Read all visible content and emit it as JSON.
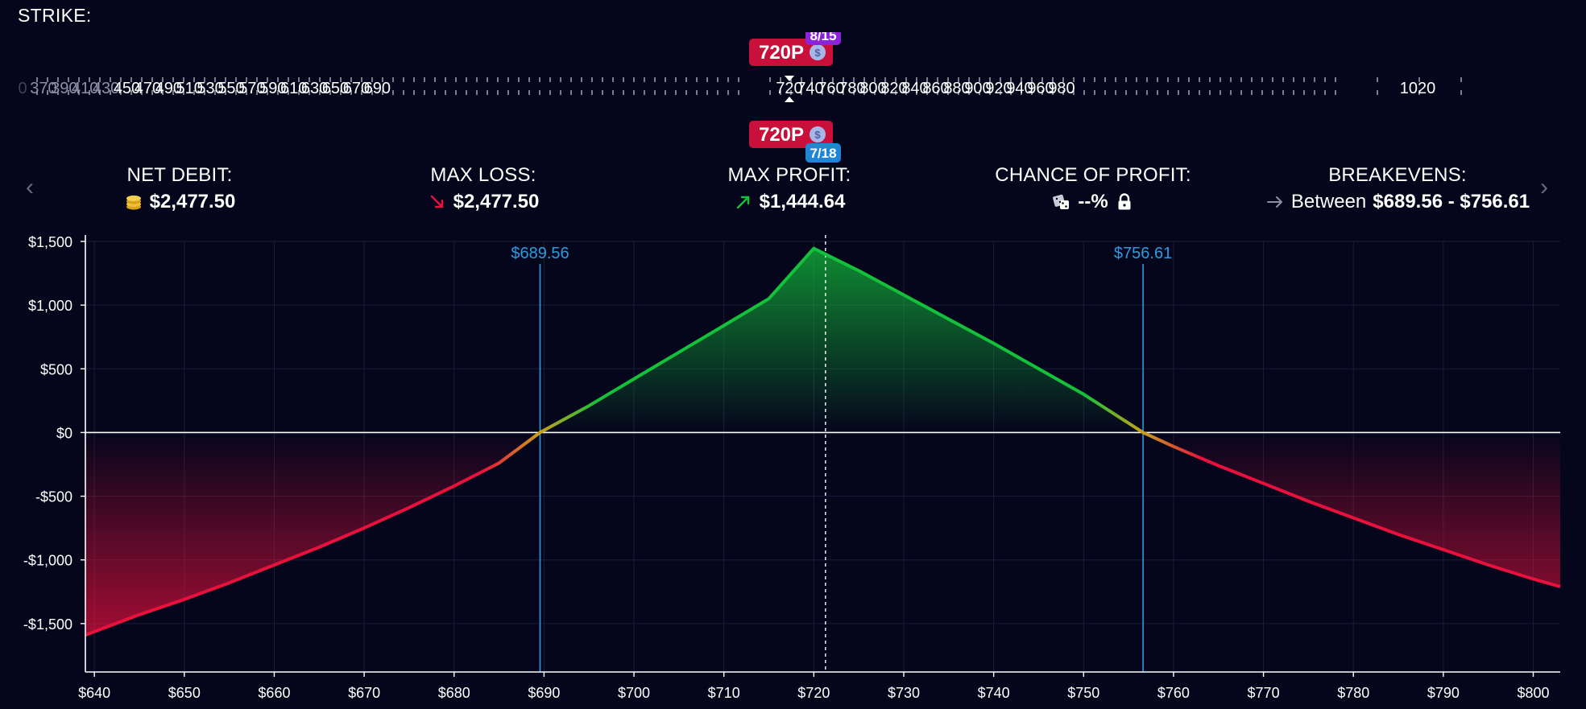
{
  "strike_panel": {
    "title": "STRIKE:",
    "tick_labels": [
      "0",
      "370",
      "390",
      "410",
      "430",
      "450",
      "470",
      "490",
      "510",
      "530",
      "550",
      "570",
      "590",
      "610",
      "630",
      "650",
      "670",
      "690",
      "720",
      "740",
      "760",
      "780",
      "800",
      "820",
      "840",
      "860",
      "880",
      "900",
      "920",
      "940",
      "960",
      "980",
      "1020"
    ],
    "selected_top": {
      "label": "720P",
      "date": "8/15",
      "date_color": "#8b24d8"
    },
    "selected_bottom": {
      "label": "720P",
      "date": "7/18",
      "date_color": "#1f86d6"
    },
    "badge_color": "#c8103a",
    "coin_glyph": "$"
  },
  "stats": {
    "net_debit": {
      "label": "NET DEBIT:",
      "value": "$2,477.50",
      "icon": "coins-icon"
    },
    "max_loss": {
      "label": "MAX LOSS:",
      "value": "$2,477.50",
      "icon": "arrow-down-right-icon"
    },
    "max_profit": {
      "label": "MAX PROFIT:",
      "value": "$1,444.64",
      "icon": "arrow-up-right-icon"
    },
    "chance_of_profit": {
      "label": "CHANCE OF PROFIT:",
      "value": "--%",
      "icon": "dice-icon",
      "lock_icon": "lock-icon"
    },
    "breakevens": {
      "label": "BREAKEVENS:",
      "prefix": "Between",
      "value": "$689.56 - $756.61",
      "icon": "arrow-right-icon"
    }
  },
  "nav": {
    "prev_glyph": "‹",
    "next_glyph": "›"
  },
  "chart_data": {
    "type": "line",
    "xlim": [
      639,
      803
    ],
    "ylim": [
      -1880,
      1500
    ],
    "x_ticks": [
      640,
      650,
      660,
      670,
      680,
      690,
      700,
      710,
      720,
      730,
      740,
      750,
      760,
      770,
      780,
      790,
      800
    ],
    "x_tick_labels": [
      "$640",
      "$650",
      "$660",
      "$670",
      "$680",
      "$690",
      "$700",
      "$710",
      "$720",
      "$730",
      "$740",
      "$750",
      "$760",
      "$770",
      "$780",
      "$790",
      "$800"
    ],
    "y_ticks": [
      1500,
      1000,
      500,
      0,
      -500,
      -1000,
      -1500
    ],
    "y_tick_labels": [
      "$1,500",
      "$1,000",
      "$500",
      "$0",
      "-$500",
      "-$1,000",
      "-$1,500"
    ],
    "series": [
      {
        "x": [
          639,
          645,
          650,
          655,
          660,
          665,
          670,
          675,
          680,
          685,
          689.56,
          695,
          700,
          705,
          710,
          715,
          720,
          725,
          730,
          735,
          740,
          745,
          750,
          756.61,
          760,
          765,
          770,
          775,
          780,
          785,
          790,
          795,
          800,
          803
        ],
        "y": [
          -1590,
          -1430,
          -1310,
          -1180,
          -1040,
          -900,
          -750,
          -590,
          -420,
          -240,
          0,
          210,
          420,
          630,
          840,
          1050,
          1445,
          1270,
          1080,
          890,
          700,
          500,
          300,
          0,
          -110,
          -260,
          -400,
          -540,
          -670,
          -800,
          -920,
          -1040,
          -1150,
          -1210
        ]
      }
    ],
    "breakevens": [
      {
        "x": 689.56,
        "label": "$689.56"
      },
      {
        "x": 756.61,
        "label": "$756.61"
      }
    ],
    "current_price_x": 721.3,
    "colors": {
      "profit": "#13c13b",
      "loss": "#e8103d",
      "breakeven": "#2f9ae0",
      "zero_line": "#ffffff",
      "grid": "#1a1d36",
      "axis_text": "#ffffff"
    },
    "grid": true
  }
}
